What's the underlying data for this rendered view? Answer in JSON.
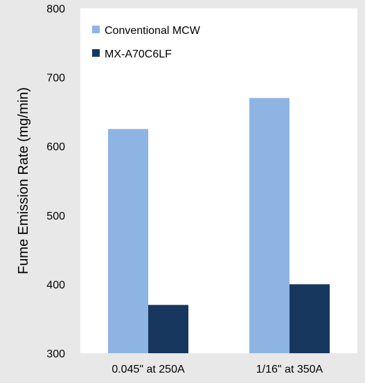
{
  "chart_data": {
    "type": "bar",
    "categories": [
      "0.045\" at 250A",
      "1/16\" at 350A"
    ],
    "series": [
      {
        "name": "Conventional MCW",
        "color": "#8eb4e3",
        "values": [
          625,
          670
        ]
      },
      {
        "name": "MX-A70C6LF",
        "color": "#17375e",
        "values": [
          370,
          400
        ]
      }
    ],
    "ylabel": "Fume Emission Rate (mg/min)",
    "ylim": [
      300,
      800
    ],
    "yticks": [
      300,
      400,
      500,
      600,
      700,
      800
    ],
    "grid": false,
    "legend_position": "top-left",
    "plot_background": "#ffffff",
    "page_background": "#e8e8e8"
  }
}
